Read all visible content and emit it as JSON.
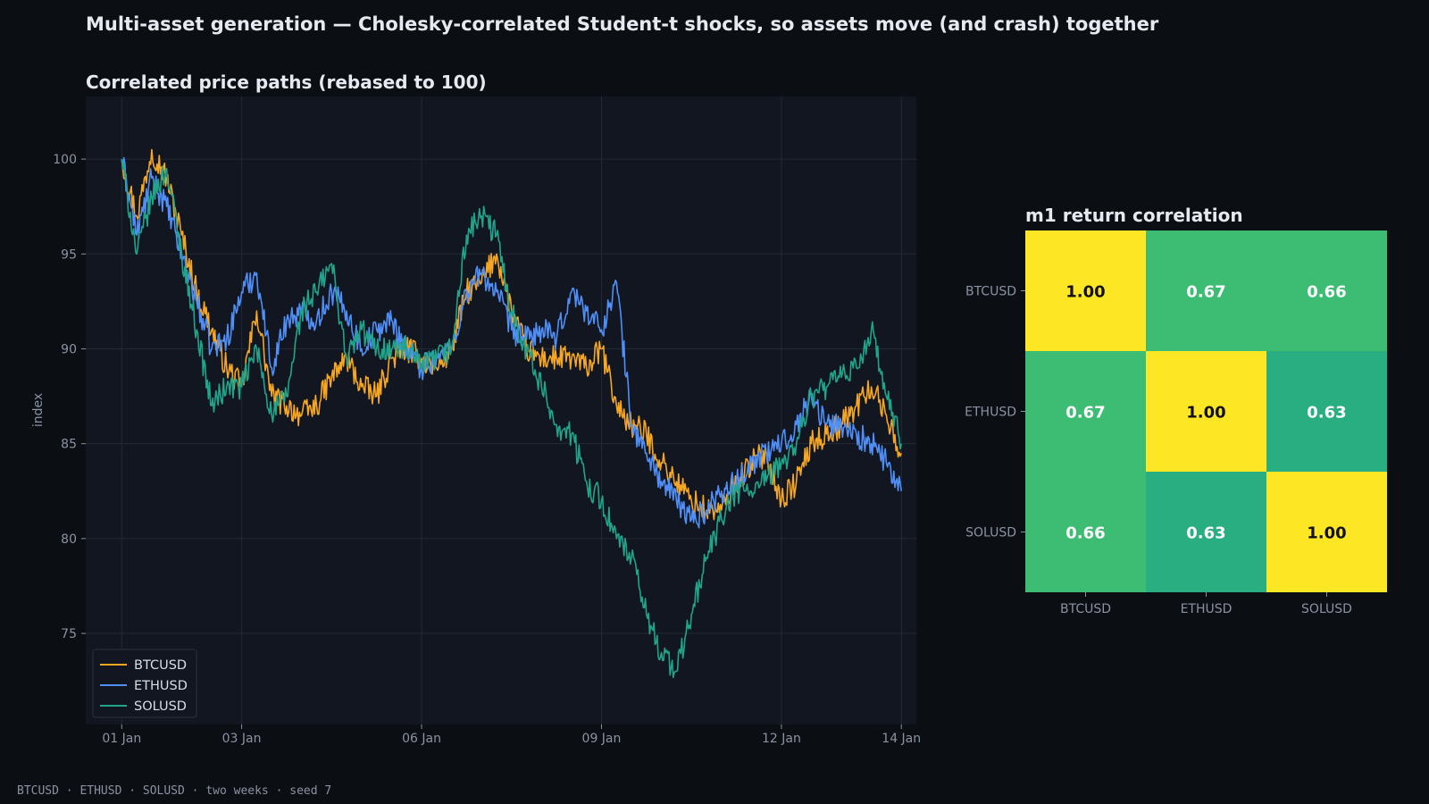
{
  "figure": {
    "suptitle": "Multi-asset generation — Cholesky-correlated Student-t shocks, so assets move (and crash) together",
    "footer": "BTCUSD · ETHUSD · SOLUSD · two weeks · seed 7"
  },
  "colors": {
    "background": "#0b0e13",
    "panel": "#111620",
    "grid": "#222a36",
    "BTCUSD": "#f5a623",
    "ETHUSD": "#4f8ff7",
    "SOLUSD": "#20a48b",
    "heat_high": "#fde725",
    "heat_mid": "#3dbc74",
    "heat_low": "#28ae80"
  },
  "chart_data": [
    {
      "type": "line",
      "title": "Correlated price paths (rebased to 100)",
      "ylabel": "index",
      "xlabel": "",
      "ylim": [
        70.2,
        103.3
      ],
      "yticks": [
        75,
        80,
        85,
        90,
        95,
        100
      ],
      "xlim_days": [
        -0.6,
        13.25
      ],
      "xticks": [
        {
          "day": 0,
          "label": "01 Jan"
        },
        {
          "day": 2,
          "label": "03 Jan"
        },
        {
          "day": 5,
          "label": "06 Jan"
        },
        {
          "day": 8,
          "label": "09 Jan"
        },
        {
          "day": 11,
          "label": "12 Jan"
        },
        {
          "day": 13,
          "label": "14 Jan"
        }
      ],
      "grid": true,
      "legend": "lower-left",
      "series": [
        {
          "name": "BTCUSD",
          "x_days": [
            0,
            0.25,
            0.5,
            0.75,
            1,
            1.25,
            1.5,
            1.75,
            2,
            2.25,
            2.5,
            2.75,
            3,
            3.25,
            3.5,
            3.75,
            4,
            4.25,
            4.5,
            4.75,
            5,
            5.25,
            5.5,
            5.75,
            6,
            6.25,
            6.5,
            6.75,
            7,
            7.25,
            7.5,
            7.75,
            8,
            8.25,
            8.5,
            8.75,
            9,
            9.25,
            9.5,
            9.75,
            10,
            10.25,
            10.5,
            10.75,
            11,
            11.25,
            11.5,
            11.75,
            12,
            12.25,
            12.5,
            12.75,
            13
          ],
          "values": [
            100,
            97,
            100.5,
            99,
            96,
            93,
            91,
            89,
            88,
            92,
            87.5,
            87,
            86.5,
            87,
            88.5,
            89.5,
            88,
            87.5,
            89.5,
            90,
            89.5,
            89,
            90,
            93,
            93.5,
            95,
            92,
            90,
            89.5,
            89.5,
            89.5,
            89,
            90,
            87,
            86,
            85.5,
            84,
            83,
            82,
            81.5,
            81.5,
            83,
            84,
            84.5,
            82,
            83,
            85,
            85.5,
            86,
            87,
            88,
            86.5,
            84.5
          ]
        },
        {
          "name": "ETHUSD",
          "x_days": [
            0,
            0.25,
            0.5,
            0.75,
            1,
            1.25,
            1.5,
            1.75,
            2,
            2.25,
            2.5,
            2.75,
            3,
            3.25,
            3.5,
            3.75,
            4,
            4.25,
            4.5,
            4.75,
            5,
            5.25,
            5.5,
            5.75,
            6,
            6.25,
            6.5,
            6.75,
            7,
            7.25,
            7.5,
            7.75,
            8,
            8.25,
            8.5,
            8.75,
            9,
            9.25,
            9.5,
            9.75,
            10,
            10.25,
            10.5,
            10.75,
            11,
            11.25,
            11.5,
            11.75,
            12,
            12.25,
            12.5,
            12.75,
            13
          ],
          "values": [
            100,
            96,
            99,
            97.5,
            95,
            92.5,
            90,
            90.5,
            93,
            94,
            89,
            91.5,
            92,
            91.5,
            93,
            92,
            90,
            91,
            91.5,
            90,
            89,
            89.5,
            90,
            93,
            94,
            93,
            91,
            90.5,
            91,
            90.5,
            93,
            92,
            91,
            93.5,
            86,
            84.5,
            83,
            82,
            81,
            81.5,
            82.5,
            83,
            84,
            84.5,
            85,
            86,
            87.5,
            86,
            86,
            85.5,
            85,
            84,
            82.5
          ]
        },
        {
          "name": "SOLUSD",
          "x_days": [
            0,
            0.25,
            0.5,
            0.75,
            1,
            1.25,
            1.5,
            1.75,
            2,
            2.25,
            2.5,
            2.75,
            3,
            3.25,
            3.5,
            3.75,
            4,
            4.25,
            4.5,
            4.75,
            5,
            5.25,
            5.5,
            5.75,
            6,
            6.25,
            6.5,
            6.75,
            7,
            7.25,
            7.5,
            7.75,
            8,
            8.25,
            8.5,
            8.75,
            9,
            9.25,
            9.5,
            9.75,
            10,
            10.25,
            10.5,
            10.75,
            11,
            11.25,
            11.5,
            11.75,
            12,
            12.25,
            12.5,
            12.75,
            13
          ],
          "values": [
            100,
            95,
            98,
            99.5,
            95,
            91,
            87,
            88,
            88,
            90,
            86.5,
            87.5,
            92,
            93,
            94.5,
            89.5,
            91,
            90,
            90,
            90,
            89,
            89.5,
            90,
            96,
            97,
            96,
            92,
            90,
            88,
            86,
            85.5,
            83,
            82,
            80,
            79,
            76,
            74,
            73,
            76,
            79,
            81,
            82.5,
            82.5,
            83,
            84,
            85,
            87.5,
            88,
            88.5,
            89,
            91,
            87.5,
            85
          ]
        }
      ]
    },
    {
      "type": "heatmap",
      "title": "m1 return correlation",
      "labels": [
        "BTCUSD",
        "ETHUSD",
        "SOLUSD"
      ],
      "matrix": [
        [
          1.0,
          0.67,
          0.66
        ],
        [
          0.67,
          1.0,
          0.63
        ],
        [
          0.66,
          0.63,
          1.0
        ]
      ],
      "cell_labels": [
        [
          "1.00",
          "0.67",
          "0.66"
        ],
        [
          "0.67",
          "1.00",
          "0.63"
        ],
        [
          "0.66",
          "0.63",
          "1.00"
        ]
      ]
    }
  ]
}
